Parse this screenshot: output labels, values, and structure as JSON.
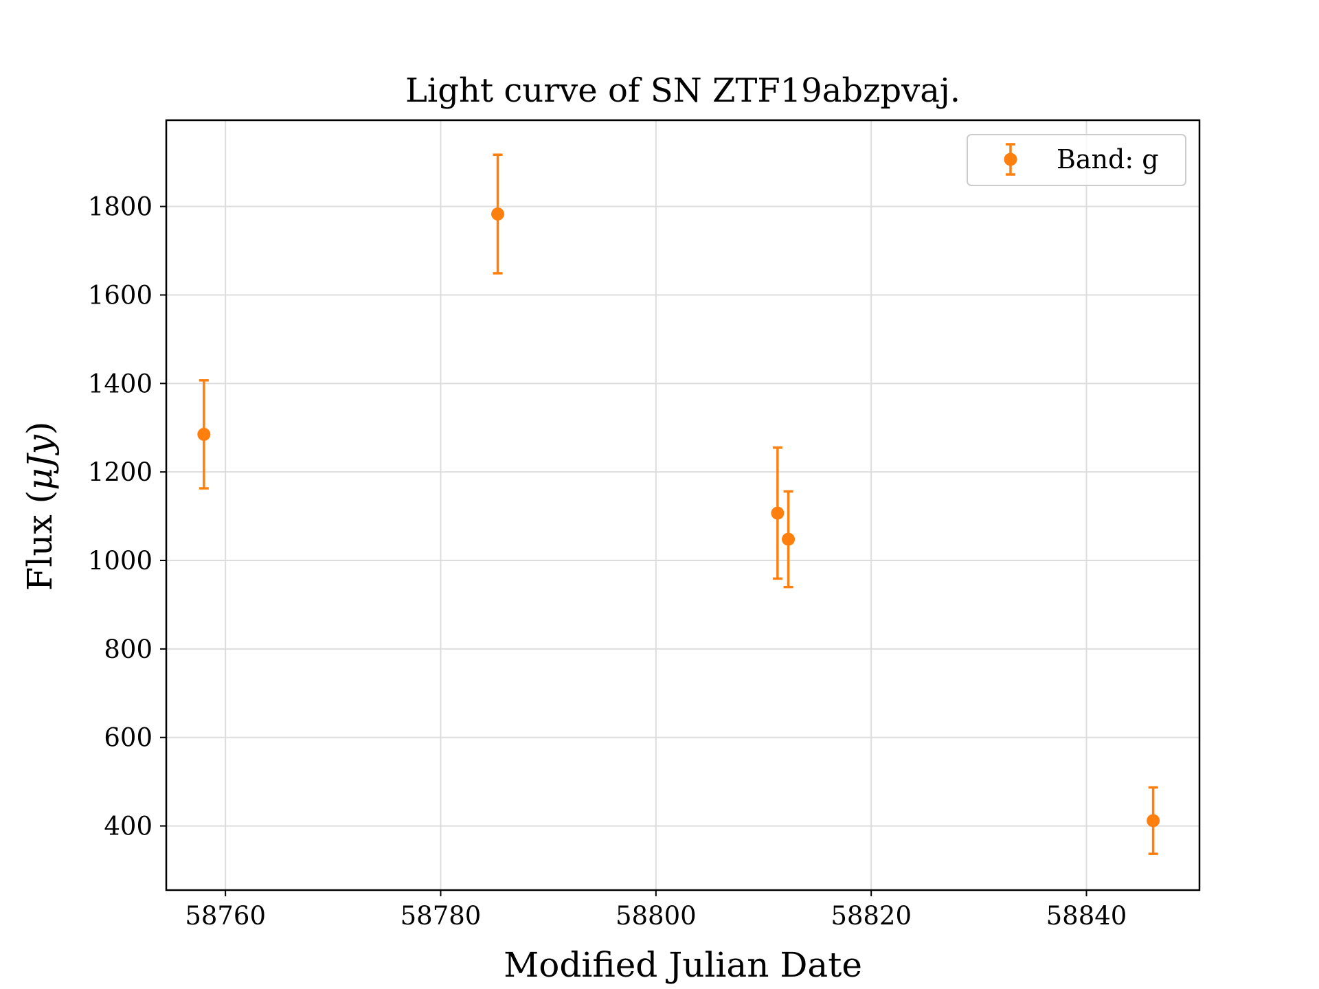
{
  "chart_data": {
    "type": "scatter",
    "title": "Light curve of SN ZTF19abzpvaj.",
    "xlabel": "Modified Julian Date",
    "ylabel_prefix": "Flux (",
    "ylabel_unit": "μJy",
    "ylabel_suffix": ")",
    "xlim": [
      58754.5,
      58850.5
    ],
    "ylim": [
      255,
      1995
    ],
    "xticks": [
      58760,
      58780,
      58800,
      58820,
      58840
    ],
    "yticks": [
      400,
      600,
      800,
      1000,
      1200,
      1400,
      1600,
      1800
    ],
    "grid": true,
    "legend_position": "top-right",
    "colors": {
      "series": "#ff7f0e",
      "grid": "#dddddd",
      "axes": "#000000"
    },
    "series": [
      {
        "name": "Band: g",
        "x": [
          58758.0,
          58785.3,
          58811.3,
          58812.3,
          58846.2
        ],
        "y": [
          1285,
          1783,
          1107,
          1048,
          412
        ],
        "yerr": [
          122,
          134,
          148,
          108,
          75
        ]
      }
    ]
  }
}
